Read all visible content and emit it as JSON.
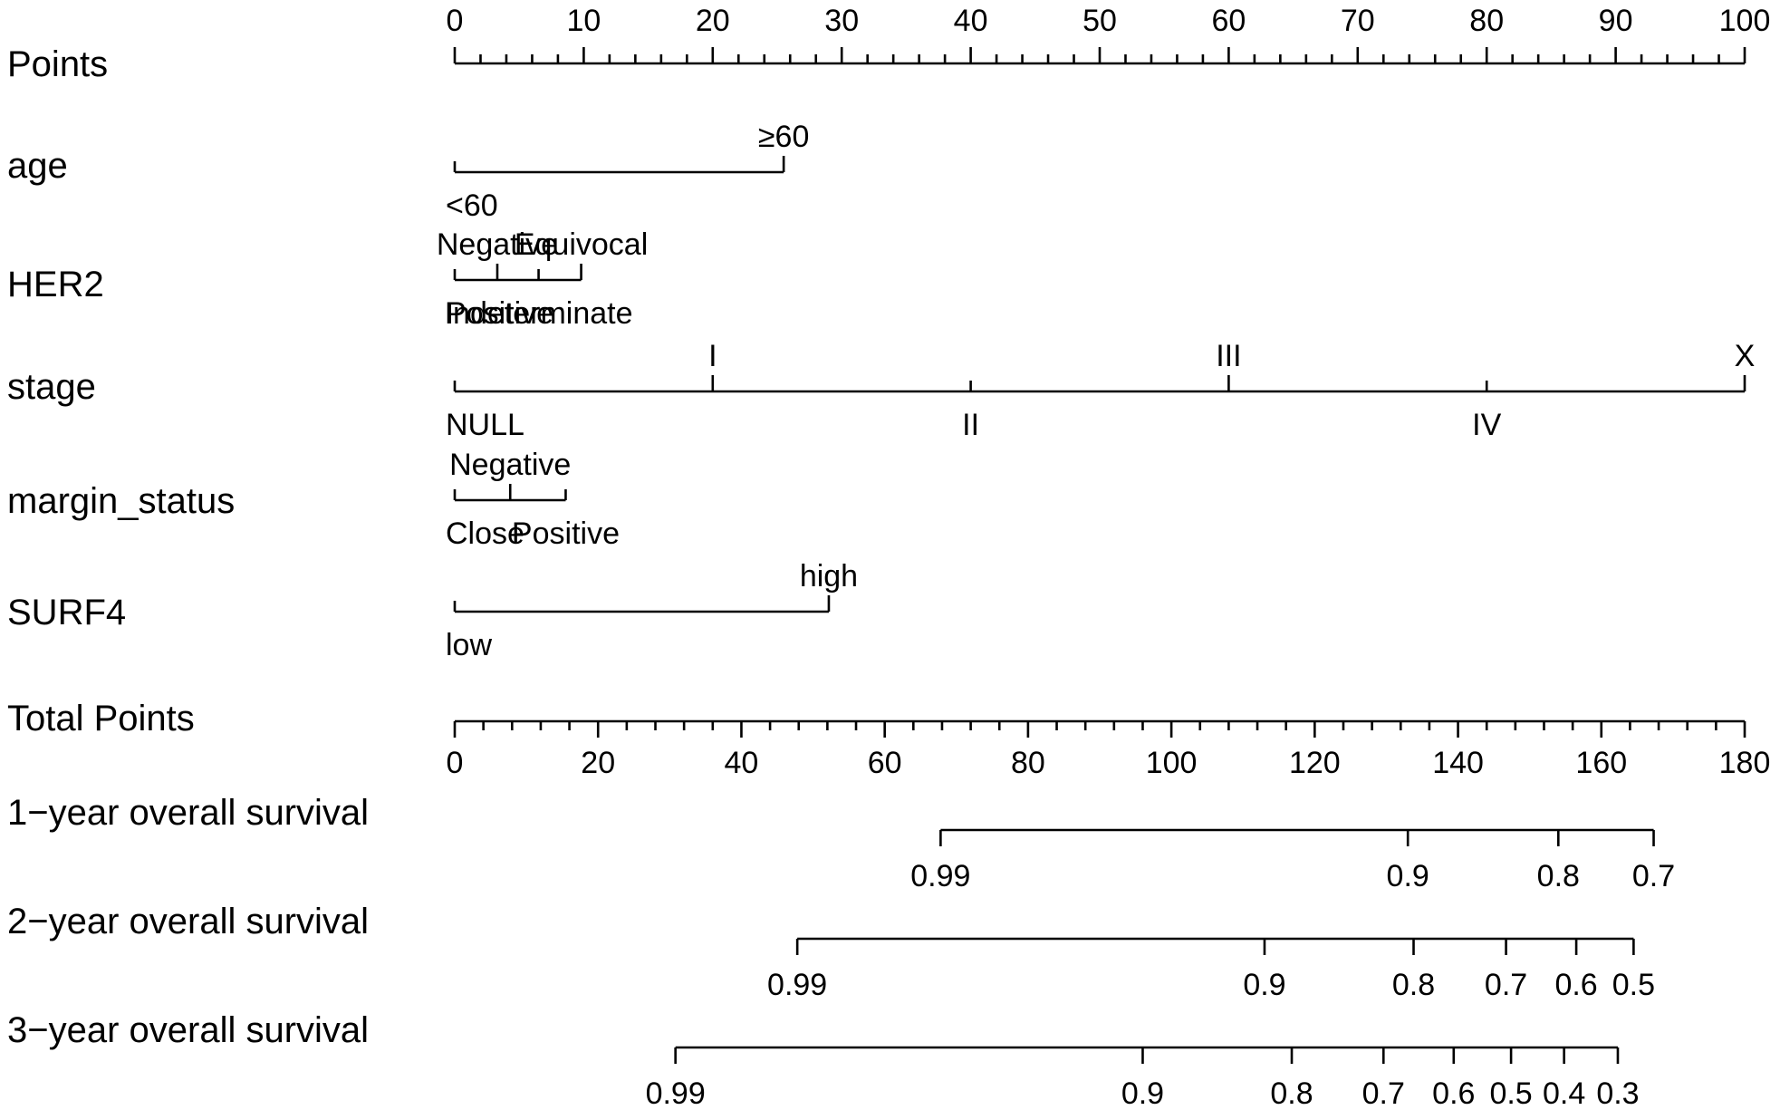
{
  "chart_data": {
    "type": "nomogram",
    "points_axis": {
      "label": "Points",
      "range": [
        0,
        100
      ],
      "major_ticks": [
        0,
        10,
        20,
        30,
        40,
        50,
        60,
        70,
        80,
        90,
        100
      ],
      "minor_step": 2
    },
    "variables": [
      {
        "name": "age",
        "levels": [
          {
            "label": "<60",
            "points": 0,
            "side": "below"
          },
          {
            "label": "≥60",
            "points": 25.5,
            "side": "above"
          }
        ]
      },
      {
        "name": "HER2",
        "levels": [
          {
            "label": "Positive",
            "points": 0,
            "side": "below"
          },
          {
            "label": "Negative",
            "points": 3.3,
            "side": "above"
          },
          {
            "label": "Indeterminate",
            "points": 6.5,
            "side": "below"
          },
          {
            "label": "Equivocal",
            "points": 9.8,
            "side": "above"
          }
        ]
      },
      {
        "name": "stage",
        "levels": [
          {
            "label": "NULL",
            "points": 0,
            "side": "below"
          },
          {
            "label": "I",
            "points": 20,
            "side": "above"
          },
          {
            "label": "II",
            "points": 40,
            "side": "below"
          },
          {
            "label": "III",
            "points": 60,
            "side": "above"
          },
          {
            "label": "IV",
            "points": 80,
            "side": "below"
          },
          {
            "label": "X",
            "points": 100,
            "side": "above"
          }
        ]
      },
      {
        "name": "margin_status",
        "levels": [
          {
            "label": "Close",
            "points": 0,
            "side": "below"
          },
          {
            "label": "Negative",
            "points": 4.3,
            "side": "above"
          },
          {
            "label": "Positive",
            "points": 8.6,
            "side": "below"
          }
        ]
      },
      {
        "name": "SURF4",
        "levels": [
          {
            "label": "low",
            "points": 0,
            "side": "below"
          },
          {
            "label": "high",
            "points": 29,
            "side": "above"
          }
        ]
      }
    ],
    "total_points_axis": {
      "label": "Total Points",
      "range": [
        0,
        180
      ],
      "major_ticks": [
        0,
        20,
        40,
        60,
        80,
        100,
        120,
        140,
        160,
        180
      ],
      "minor_step": 4
    },
    "survival_axes": [
      {
        "label": "1−year overall survival",
        "ticks": [
          {
            "label": "0.99",
            "total_points": 67.8
          },
          {
            "label": "0.9",
            "total_points": 133
          },
          {
            "label": "0.8",
            "total_points": 154
          },
          {
            "label": "0.7",
            "total_points": 167.3
          }
        ]
      },
      {
        "label": "2−year overall survival",
        "ticks": [
          {
            "label": "0.99",
            "total_points": 47.8
          },
          {
            "label": "0.9",
            "total_points": 113
          },
          {
            "label": "0.8",
            "total_points": 133.8
          },
          {
            "label": "0.7",
            "total_points": 146.7
          },
          {
            "label": "0.6",
            "total_points": 156.5
          },
          {
            "label": "0.5",
            "total_points": 164.5
          }
        ]
      },
      {
        "label": "3−year overall survival",
        "ticks": [
          {
            "label": "0.99",
            "total_points": 30.8
          },
          {
            "label": "0.9",
            "total_points": 96
          },
          {
            "label": "0.8",
            "total_points": 116.8
          },
          {
            "label": "0.7",
            "total_points": 129.6
          },
          {
            "label": "0.6",
            "total_points": 139.4
          },
          {
            "label": "0.5",
            "total_points": 147.4
          },
          {
            "label": "0.4",
            "total_points": 154.8
          },
          {
            "label": "0.3",
            "total_points": 162.3
          }
        ]
      }
    ]
  }
}
